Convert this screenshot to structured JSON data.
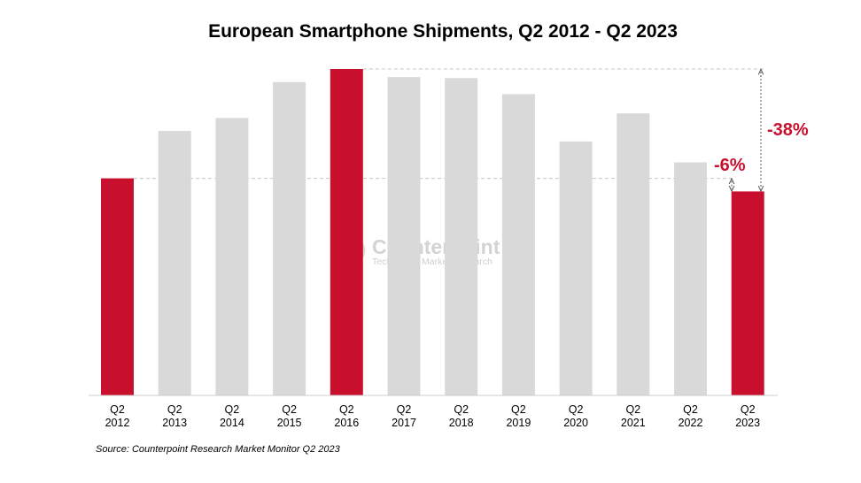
{
  "chart_data": {
    "type": "bar",
    "title": "European Smartphone Shipments, Q2 2012 - Q2 2023",
    "categories": [
      [
        "Q2",
        "2012"
      ],
      [
        "Q2",
        "2013"
      ],
      [
        "Q2",
        "2014"
      ],
      [
        "Q2",
        "2015"
      ],
      [
        "Q2",
        "2016"
      ],
      [
        "Q2",
        "2017"
      ],
      [
        "Q2",
        "2018"
      ],
      [
        "Q2",
        "2019"
      ],
      [
        "Q2",
        "2020"
      ],
      [
        "Q2",
        "2021"
      ],
      [
        "Q2",
        "2022"
      ],
      [
        "Q2",
        "2023"
      ]
    ],
    "values": [
      66.5,
      81,
      85,
      96,
      100,
      97.5,
      97.2,
      92.3,
      77.8,
      86.4,
      71.4,
      62.5
    ],
    "highlighted": [
      0,
      4,
      11
    ],
    "ylim": [
      0,
      100
    ],
    "xlabel": "",
    "ylabel": "",
    "grid": false,
    "annotations": [
      {
        "text": "-38%",
        "from_category": 4,
        "to_category": 11
      },
      {
        "text": "-6%",
        "from_category": 0,
        "to_category": 11
      }
    ],
    "colors": {
      "highlight": "#c8102e",
      "bar": "#d9d9d9",
      "callout": "#e8141c"
    }
  },
  "watermark": {
    "name": "Counterpoint",
    "tagline": "Technology Market Research"
  },
  "source": "Source: Counterpoint Research Market Monitor Q2 2023"
}
